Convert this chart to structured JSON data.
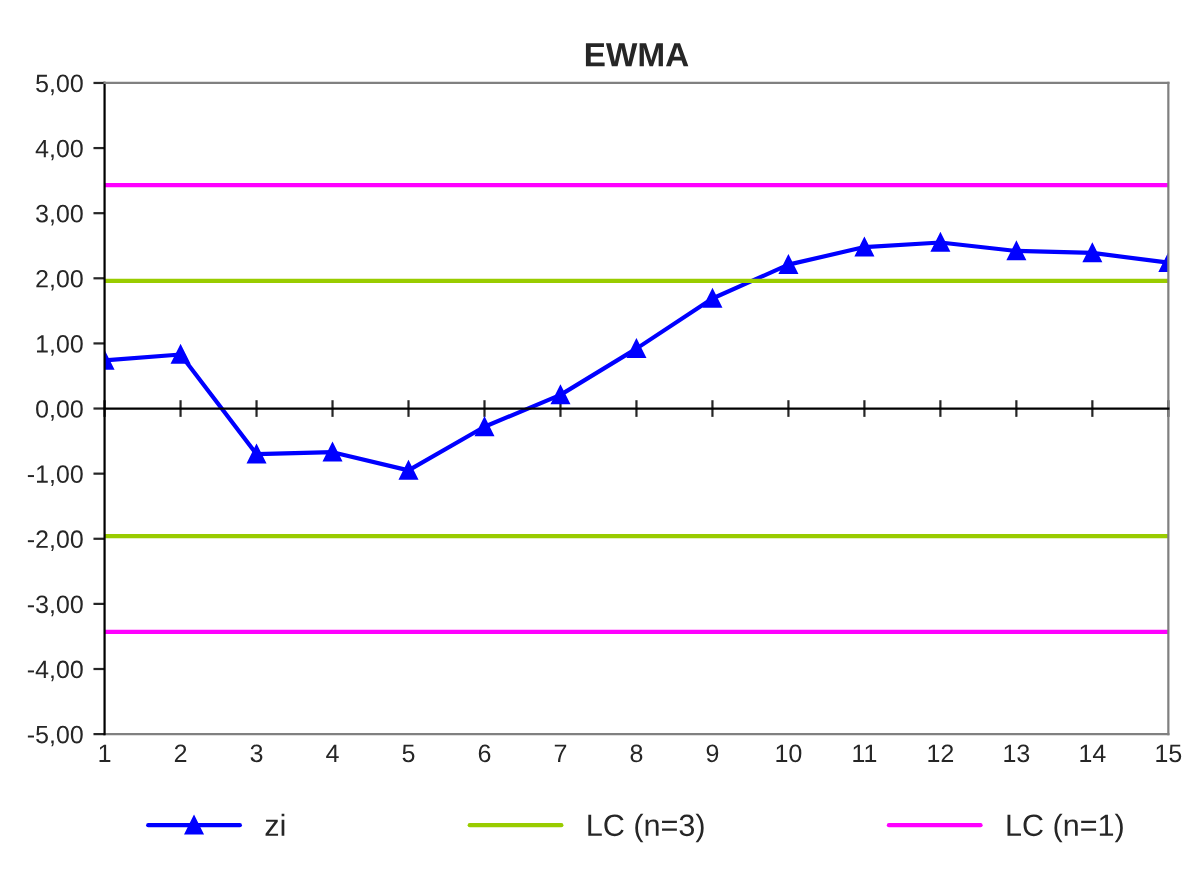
{
  "chart_data": {
    "type": "line",
    "title": "EWMA",
    "categories": [
      "1",
      "2",
      "3",
      "4",
      "5",
      "6",
      "7",
      "8",
      "9",
      "10",
      "11",
      "12",
      "13",
      "14",
      "15"
    ],
    "series": [
      {
        "name": "zi",
        "color": "#0000ff",
        "marker": "triangle",
        "values": [
          0.74,
          0.83,
          -0.7,
          -0.67,
          -0.95,
          -0.28,
          0.21,
          0.92,
          1.69,
          2.21,
          2.48,
          2.55,
          2.42,
          2.39,
          2.24
        ]
      },
      {
        "name": "LC (n=3)",
        "color": "#99cc00",
        "marker": "none",
        "values": [
          1.96,
          1.96,
          1.96,
          1.96,
          1.96,
          1.96,
          1.96,
          1.96,
          1.96,
          1.96,
          1.96,
          1.96,
          1.96,
          1.96,
          1.96
        ]
      },
      {
        "name": "LC (n=1)",
        "color": "#ff00ff",
        "marker": "none",
        "values": [
          3.43,
          3.43,
          3.43,
          3.43,
          3.43,
          3.43,
          3.43,
          3.43,
          3.43,
          3.43,
          3.43,
          3.43,
          3.43,
          3.43,
          3.43
        ]
      },
      {
        "color": "#99cc00",
        "marker": "none",
        "values": [
          -1.96,
          -1.96,
          -1.96,
          -1.96,
          -1.96,
          -1.96,
          -1.96,
          -1.96,
          -1.96,
          -1.96,
          -1.96,
          -1.96,
          -1.96,
          -1.96,
          -1.96
        ]
      },
      {
        "color": "#ff00ff",
        "marker": "none",
        "values": [
          -3.43,
          -3.43,
          -3.43,
          -3.43,
          -3.43,
          -3.43,
          -3.43,
          -3.43,
          -3.43,
          -3.43,
          -3.43,
          -3.43,
          -3.43,
          -3.43,
          -3.43
        ]
      }
    ],
    "ylim": [
      -5,
      5
    ],
    "yticks": [
      {
        "value": -5,
        "label": "-5,00"
      },
      {
        "value": -4,
        "label": "-4,00"
      },
      {
        "value": -3,
        "label": "-3,00"
      },
      {
        "value": -2,
        "label": "-2,00"
      },
      {
        "value": -1,
        "label": "-1,00"
      },
      {
        "value": 0,
        "label": "0,00"
      },
      {
        "value": 1,
        "label": "1,00"
      },
      {
        "value": 2,
        "label": "2,00"
      },
      {
        "value": 3,
        "label": "3,00"
      },
      {
        "value": 4,
        "label": "4,00"
      },
      {
        "value": 5,
        "label": "5,00"
      }
    ],
    "legend": "bottom",
    "line_style": "solid"
  }
}
